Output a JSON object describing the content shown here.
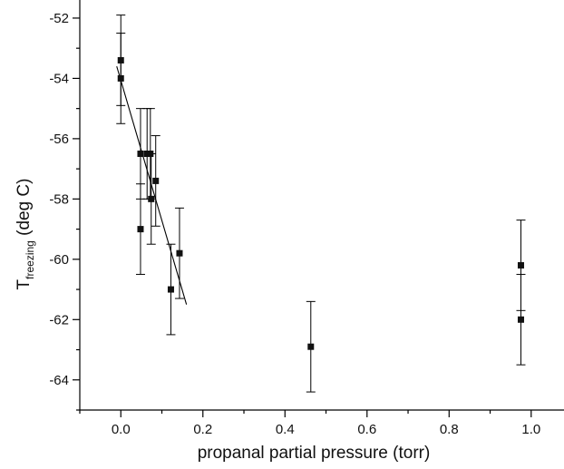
{
  "chart_data": {
    "type": "scatter",
    "title": "",
    "xlabel": "propanal partial pressure (torr)",
    "ylabel": {
      "main": "T",
      "subscript": "freezing",
      "suffix": " (deg C)"
    },
    "xlim": [
      -0.1,
      1.08
    ],
    "ylim": [
      -65.0,
      -51.4
    ],
    "x_ticks": [
      0.0,
      0.2,
      0.4,
      0.6,
      0.8,
      1.0
    ],
    "x_tick_labels": [
      "0.0",
      "0.2",
      "0.4",
      "0.6",
      "0.8",
      "1.0"
    ],
    "x_minor_ticks": [
      -0.1,
      0.1,
      0.3,
      0.5,
      0.7,
      0.9
    ],
    "y_ticks": [
      -52,
      -54,
      -56,
      -58,
      -60,
      -62,
      -64
    ],
    "y_tick_labels": [
      "-52",
      "-54",
      "-56",
      "-58",
      "-60",
      "-62",
      "-64"
    ],
    "y_minor_ticks": [
      -53,
      -55,
      -57,
      -59,
      -61,
      -63,
      -65
    ],
    "grid": false,
    "legend": "none",
    "series": [
      {
        "marker": "square",
        "color": "#111111",
        "points": [
          {
            "x": 0.0,
            "y": -53.4,
            "yerr": 1.5
          },
          {
            "x": 0.0,
            "y": -54.0,
            "yerr": 1.5
          },
          {
            "x": 0.048,
            "y": -56.5,
            "yerr": 1.5
          },
          {
            "x": 0.048,
            "y": -59.0,
            "yerr": 1.5
          },
          {
            "x": 0.064,
            "y": -56.5,
            "yerr": 1.5
          },
          {
            "x": 0.072,
            "y": -56.5,
            "yerr": 1.5
          },
          {
            "x": 0.074,
            "y": -58.0,
            "yerr": 1.5
          },
          {
            "x": 0.085,
            "y": -57.4,
            "yerr": 1.5
          },
          {
            "x": 0.122,
            "y": -61.0,
            "yerr": 1.5
          },
          {
            "x": 0.143,
            "y": -59.8,
            "yerr": 1.5
          },
          {
            "x": 0.463,
            "y": -62.9,
            "yerr": 1.5
          },
          {
            "x": 0.975,
            "y": -60.2,
            "yerr": 1.5
          },
          {
            "x": 0.975,
            "y": -62.0,
            "yerr": 1.5
          }
        ]
      }
    ],
    "fit_line": {
      "x": [
        -0.01,
        0.16
      ],
      "y": [
        -53.6,
        -61.5
      ]
    }
  }
}
